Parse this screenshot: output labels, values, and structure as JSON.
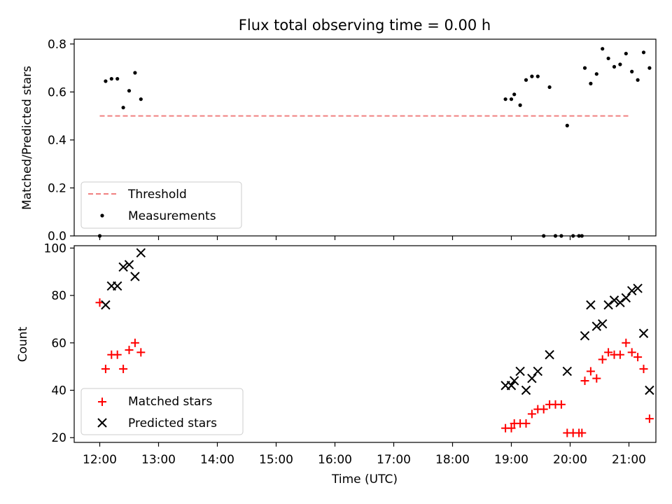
{
  "title": "Flux total observing time = 0.00 h",
  "xlabel": "Time (UTC)",
  "colors": {
    "threshold": "#f08080",
    "measurement": "#000000",
    "matched": "#ff0000",
    "predicted": "#000000"
  },
  "chart_data": [
    {
      "type": "scatter",
      "ylabel": "Matched/Predicted stars",
      "ylim": [
        0,
        0.82
      ],
      "yticks": [
        "0.0",
        "0.2",
        "0.4",
        "0.6",
        "0.8"
      ],
      "grid": false,
      "legend_position": "lower-left",
      "threshold": {
        "name": "Threshold",
        "value": 0.5,
        "x_start": "12:00",
        "x_end": "21:00"
      },
      "series": [
        {
          "name": "Measurements",
          "points": [
            [
              "12:00",
              0.0
            ],
            [
              "12:06",
              0.645
            ],
            [
              "12:12",
              0.655
            ],
            [
              "12:18",
              0.655
            ],
            [
              "12:24",
              0.535
            ],
            [
              "12:30",
              0.605
            ],
            [
              "12:36",
              0.68
            ],
            [
              "12:42",
              0.57
            ],
            [
              "18:54",
              0.57
            ],
            [
              "19:00",
              0.57
            ],
            [
              "19:03",
              0.59
            ],
            [
              "19:09",
              0.545
            ],
            [
              "19:15",
              0.65
            ],
            [
              "19:21",
              0.665
            ],
            [
              "19:27",
              0.665
            ],
            [
              "19:33",
              0.0
            ],
            [
              "19:39",
              0.62
            ],
            [
              "19:45",
              0.0
            ],
            [
              "19:51",
              0.0
            ],
            [
              "19:57",
              0.46
            ],
            [
              "20:03",
              0.0
            ],
            [
              "20:09",
              0.0
            ],
            [
              "20:12",
              0.0
            ],
            [
              "20:15",
              0.7
            ],
            [
              "20:21",
              0.635
            ],
            [
              "20:27",
              0.675
            ],
            [
              "20:33",
              0.78
            ],
            [
              "20:39",
              0.74
            ],
            [
              "20:45",
              0.705
            ],
            [
              "20:51",
              0.715
            ],
            [
              "20:57",
              0.76
            ],
            [
              "21:03",
              0.685
            ],
            [
              "21:09",
              0.65
            ],
            [
              "21:15",
              0.765
            ],
            [
              "21:21",
              0.7
            ]
          ]
        }
      ]
    },
    {
      "type": "scatter",
      "ylabel": "Count",
      "ylim": [
        18,
        101
      ],
      "yticks": [
        "20",
        "40",
        "60",
        "80",
        "100"
      ],
      "grid": false,
      "legend_position": "lower-left",
      "xticks": [
        "12:00",
        "13:00",
        "14:00",
        "15:00",
        "16:00",
        "17:00",
        "18:00",
        "19:00",
        "20:00",
        "21:00"
      ],
      "series": [
        {
          "name": "Matched stars",
          "marker": "plus",
          "points": [
            [
              "12:00",
              77
            ],
            [
              "12:06",
              49
            ],
            [
              "12:12",
              55
            ],
            [
              "12:18",
              55
            ],
            [
              "12:24",
              49
            ],
            [
              "12:30",
              57
            ],
            [
              "12:36",
              60
            ],
            [
              "12:42",
              56
            ],
            [
              "18:54",
              24
            ],
            [
              "19:00",
              24
            ],
            [
              "19:03",
              26
            ],
            [
              "19:09",
              26
            ],
            [
              "19:15",
              26
            ],
            [
              "19:21",
              30
            ],
            [
              "19:27",
              32
            ],
            [
              "19:33",
              32
            ],
            [
              "19:39",
              34
            ],
            [
              "19:45",
              34
            ],
            [
              "19:51",
              34
            ],
            [
              "19:57",
              22
            ],
            [
              "20:03",
              22
            ],
            [
              "20:09",
              22
            ],
            [
              "20:12",
              22
            ],
            [
              "20:15",
              44
            ],
            [
              "20:21",
              48
            ],
            [
              "20:27",
              45
            ],
            [
              "20:33",
              53
            ],
            [
              "20:39",
              56
            ],
            [
              "20:45",
              55
            ],
            [
              "20:51",
              55
            ],
            [
              "20:57",
              60
            ],
            [
              "21:03",
              56
            ],
            [
              "21:09",
              54
            ],
            [
              "21:15",
              49
            ],
            [
              "21:21",
              28
            ]
          ]
        },
        {
          "name": "Predicted stars",
          "marker": "x",
          "points": [
            [
              "12:06",
              76
            ],
            [
              "12:12",
              84
            ],
            [
              "12:18",
              84
            ],
            [
              "12:24",
              92
            ],
            [
              "12:30",
              93
            ],
            [
              "12:36",
              88
            ],
            [
              "12:42",
              98
            ],
            [
              "18:54",
              42
            ],
            [
              "19:00",
              42
            ],
            [
              "19:03",
              44
            ],
            [
              "19:09",
              48
            ],
            [
              "19:15",
              40
            ],
            [
              "19:21",
              45
            ],
            [
              "19:27",
              48
            ],
            [
              "19:39",
              55
            ],
            [
              "19:57",
              48
            ],
            [
              "20:15",
              63
            ],
            [
              "20:21",
              76
            ],
            [
              "20:27",
              67
            ],
            [
              "20:33",
              68
            ],
            [
              "20:39",
              76
            ],
            [
              "20:45",
              78
            ],
            [
              "20:51",
              77
            ],
            [
              "20:57",
              79
            ],
            [
              "21:03",
              82
            ],
            [
              "21:09",
              83
            ],
            [
              "21:15",
              64
            ],
            [
              "21:21",
              40
            ]
          ]
        }
      ]
    }
  ]
}
